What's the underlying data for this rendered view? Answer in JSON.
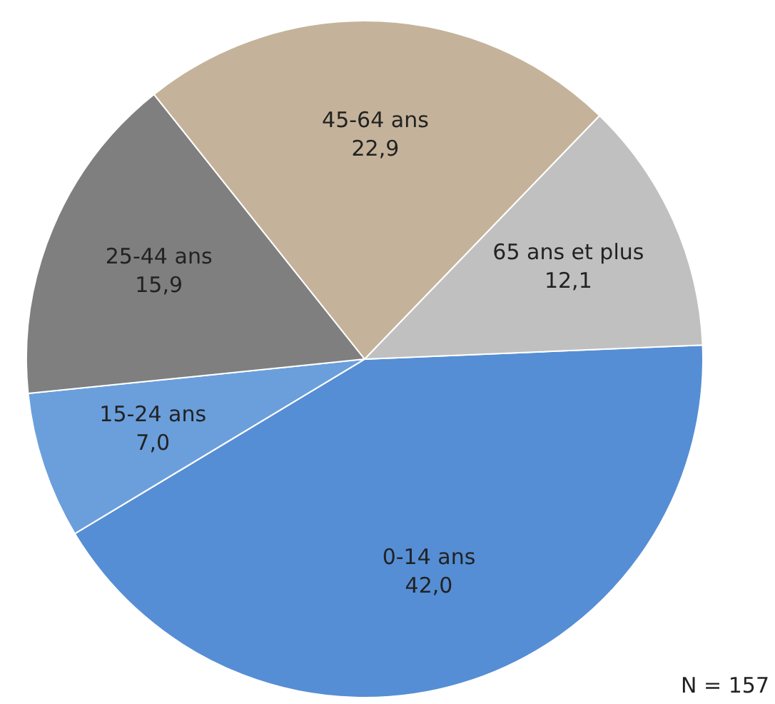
{
  "chart_data": {
    "type": "pie",
    "categories": [
      "0-14 ans",
      "15-24 ans",
      "25-44 ans",
      "45-64 ans",
      "65 ans et plus"
    ],
    "values": [
      42.0,
      7.0,
      15.9,
      22.9,
      12.1
    ],
    "value_labels": [
      "42,0",
      "7,0",
      "15,9",
      "22,9",
      "12,1"
    ],
    "colors": [
      "#558ed5",
      "#6a9fdc",
      "#7f7f7f",
      "#c4b39a",
      "#c0c0c0"
    ],
    "legend": false,
    "annotations": [
      "N = 157"
    ]
  }
}
